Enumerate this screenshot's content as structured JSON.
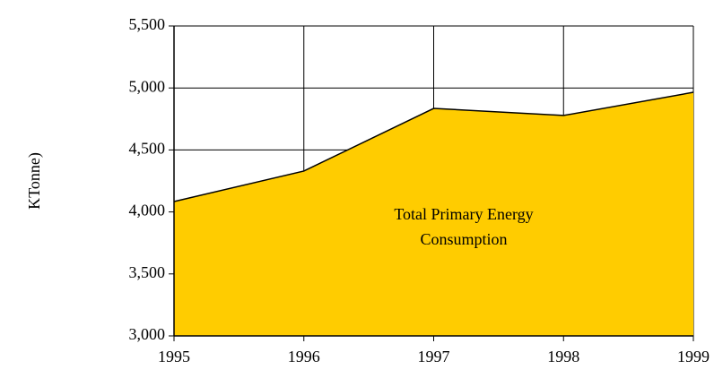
{
  "chart_data": {
    "type": "area",
    "ylabel": "KTonne)",
    "annotation": [
      "Total Primary Energy",
      "Consumption"
    ],
    "x": [
      1995,
      1996,
      1997,
      1998,
      1999
    ],
    "series": [
      {
        "color": "#ffcc00",
        "values": [
          4084,
          4330,
          4835,
          4778,
          4965
        ]
      }
    ],
    "xlim": [
      1995,
      1999
    ],
    "xticks": [
      1995,
      1996,
      1997,
      1998,
      1999
    ],
    "ylim": [
      3000,
      5500
    ],
    "yticks": [
      {
        "value": 3000,
        "label": "3,000"
      },
      {
        "value": 3500,
        "label": "3,500"
      },
      {
        "value": 4000,
        "label": "4,000"
      },
      {
        "value": 4500,
        "label": "4,500"
      },
      {
        "value": 5000,
        "label": "5,000"
      },
      {
        "value": 5500,
        "label": "5,500"
      }
    ],
    "grid": true
  }
}
